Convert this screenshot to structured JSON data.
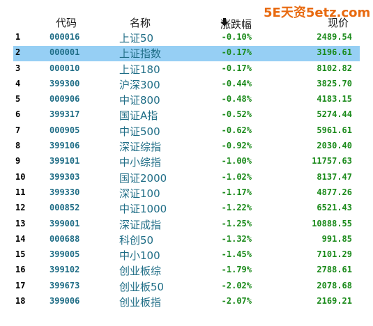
{
  "watermark": "5E天资5etz.com",
  "header": {
    "code": "代码",
    "name": "名称",
    "change": "涨跌幅",
    "price": "现价",
    "sort_icon": "sort-down-arrow-icon"
  },
  "colors": {
    "code_name": "#1f6d86",
    "values_down": "#1a8a1a",
    "selected_row": "#96cff4",
    "watermark": "#e86a10"
  },
  "selected_row_index": 1,
  "rows": [
    {
      "idx": "1",
      "code": "000016",
      "name": "上证50",
      "change": "-0.10%",
      "price": "2489.54"
    },
    {
      "idx": "2",
      "code": "000001",
      "name": "上证指数",
      "change": "-0.17%",
      "price": "3196.61"
    },
    {
      "idx": "3",
      "code": "000010",
      "name": "上证180",
      "change": "-0.17%",
      "price": "8102.82"
    },
    {
      "idx": "4",
      "code": "399300",
      "name": "沪深300",
      "change": "-0.44%",
      "price": "3825.70"
    },
    {
      "idx": "5",
      "code": "000906",
      "name": "中证800",
      "change": "-0.48%",
      "price": "4183.15"
    },
    {
      "idx": "6",
      "code": "399317",
      "name": "国证A指",
      "change": "-0.52%",
      "price": "5274.44"
    },
    {
      "idx": "7",
      "code": "000905",
      "name": "中证500",
      "change": "-0.62%",
      "price": "5961.61"
    },
    {
      "idx": "8",
      "code": "399106",
      "name": "深证综指",
      "change": "-0.92%",
      "price": "2030.40"
    },
    {
      "idx": "9",
      "code": "399101",
      "name": "中小综指",
      "change": "-1.00%",
      "price": "11757.63"
    },
    {
      "idx": "10",
      "code": "399303",
      "name": "国证2000",
      "change": "-1.02%",
      "price": "8137.47"
    },
    {
      "idx": "11",
      "code": "399330",
      "name": "深证100",
      "change": "-1.17%",
      "price": "4877.26"
    },
    {
      "idx": "12",
      "code": "000852",
      "name": "中证1000",
      "change": "-1.22%",
      "price": "6521.43"
    },
    {
      "idx": "13",
      "code": "399001",
      "name": "深证成指",
      "change": "-1.25%",
      "price": "10888.55"
    },
    {
      "idx": "14",
      "code": "000688",
      "name": "科创50",
      "change": "-1.32%",
      "price": "991.85"
    },
    {
      "idx": "15",
      "code": "399005",
      "name": "中小100",
      "change": "-1.45%",
      "price": "7101.29"
    },
    {
      "idx": "16",
      "code": "399102",
      "name": "创业板综",
      "change": "-1.79%",
      "price": "2788.61"
    },
    {
      "idx": "17",
      "code": "399673",
      "name": "创业板50",
      "change": "-2.02%",
      "price": "2078.68"
    },
    {
      "idx": "18",
      "code": "399006",
      "name": "创业板指",
      "change": "-2.07%",
      "price": "2169.21"
    }
  ]
}
